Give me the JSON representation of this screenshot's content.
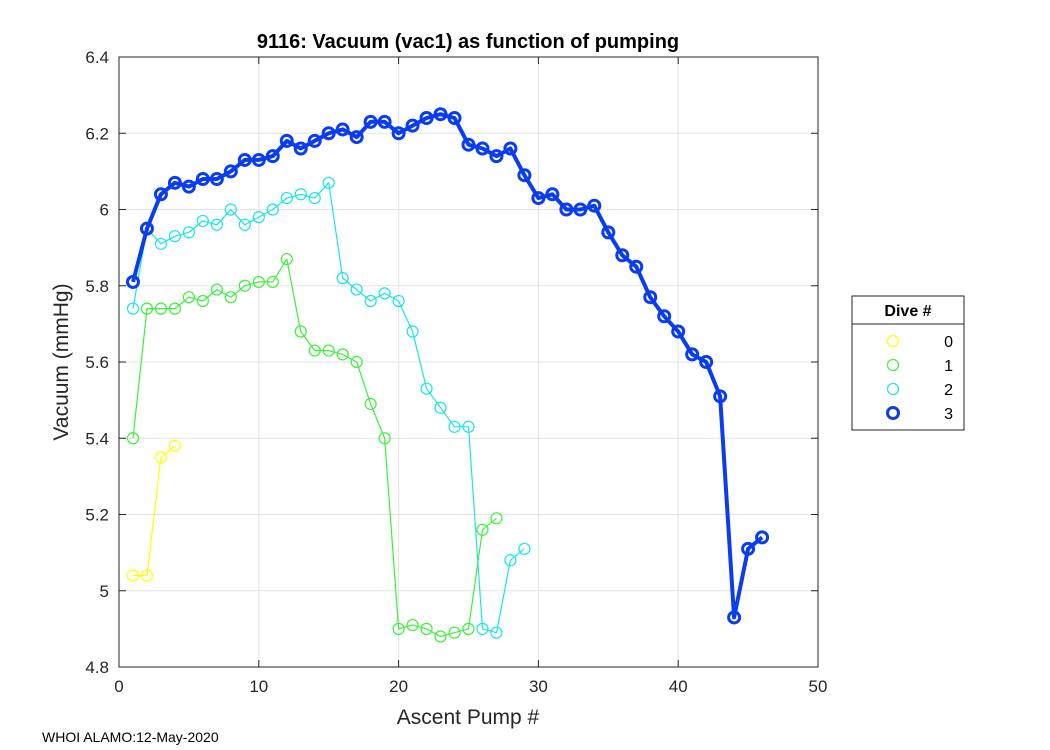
{
  "chart_data": {
    "type": "line",
    "title": "9116: Vacuum (vac1) as function of pumping",
    "xlabel": "Ascent Pump #",
    "ylabel": "Vacuum (mmHg)",
    "xlim": [
      0,
      50
    ],
    "ylim": [
      4.8,
      6.4
    ],
    "xticks": [
      0,
      10,
      20,
      30,
      40,
      50
    ],
    "xtick_labels": [
      "0",
      "10",
      "20",
      "30",
      "40",
      "50"
    ],
    "yticks": [
      4.8,
      5,
      5.2,
      5.4,
      5.6,
      5.8,
      6,
      6.2,
      6.4
    ],
    "ytick_labels": [
      "4.8",
      "5",
      "5.2",
      "5.4",
      "5.6",
      "5.8",
      "6",
      "6.2",
      "6.4"
    ],
    "grid": true,
    "legend": {
      "title": "Dive #",
      "position": "right"
    },
    "footer": "WHOI ALAMO:12-May-2020",
    "series": [
      {
        "name": "0",
        "color": "#ffff00",
        "thick": false,
        "x": [
          1,
          2,
          3,
          4
        ],
        "y": [
          5.04,
          5.04,
          5.35,
          5.38
        ]
      },
      {
        "name": "1",
        "color": "#3cf03c",
        "thick": false,
        "x": [
          1,
          2,
          3,
          4,
          5,
          6,
          7,
          8,
          9,
          10,
          11,
          12,
          13,
          14,
          15,
          16,
          17,
          18,
          19,
          20,
          21,
          22,
          23,
          24,
          25,
          26,
          27
        ],
        "y": [
          5.4,
          5.74,
          5.74,
          5.74,
          5.77,
          5.76,
          5.79,
          5.77,
          5.8,
          5.81,
          5.81,
          5.87,
          5.68,
          5.63,
          5.63,
          5.62,
          5.6,
          5.49,
          5.4,
          4.9,
          4.91,
          4.9,
          4.88,
          4.89,
          4.9,
          5.16,
          5.19
        ]
      },
      {
        "name": "2",
        "color": "#19e6e6",
        "thick": false,
        "x": [
          1,
          2,
          3,
          4,
          5,
          6,
          7,
          8,
          9,
          10,
          11,
          12,
          13,
          14,
          15,
          16,
          17,
          18,
          19,
          20,
          21,
          22,
          23,
          24,
          25,
          26,
          27,
          28,
          29
        ],
        "y": [
          5.74,
          5.95,
          5.91,
          5.93,
          5.94,
          5.97,
          5.96,
          6.0,
          5.96,
          5.98,
          6.0,
          6.03,
          6.04,
          6.03,
          6.07,
          5.82,
          5.79,
          5.76,
          5.78,
          5.76,
          5.68,
          5.53,
          5.48,
          5.43,
          5.43,
          4.9,
          4.89,
          5.08,
          5.11
        ]
      },
      {
        "name": "3",
        "color": "#0a3cf0",
        "thick": true,
        "x": [
          1,
          2,
          3,
          4,
          5,
          6,
          7,
          8,
          9,
          10,
          11,
          12,
          13,
          14,
          15,
          16,
          17,
          18,
          19,
          20,
          21,
          22,
          23,
          24,
          25,
          26,
          27,
          28,
          29,
          30,
          31,
          32,
          33,
          34,
          35,
          36,
          37,
          38,
          39,
          40,
          41,
          42,
          43,
          44,
          45,
          46
        ],
        "y": [
          5.81,
          5.95,
          6.04,
          6.07,
          6.06,
          6.08,
          6.08,
          6.1,
          6.13,
          6.13,
          6.14,
          6.18,
          6.16,
          6.18,
          6.2,
          6.21,
          6.19,
          6.23,
          6.23,
          6.2,
          6.22,
          6.24,
          6.25,
          6.24,
          6.17,
          6.16,
          6.14,
          6.16,
          6.09,
          6.03,
          6.04,
          6.0,
          6.0,
          6.01,
          5.94,
          5.88,
          5.85,
          5.77,
          5.72,
          5.68,
          5.62,
          5.6,
          5.51,
          4.93,
          5.11,
          5.14
        ]
      }
    ]
  }
}
